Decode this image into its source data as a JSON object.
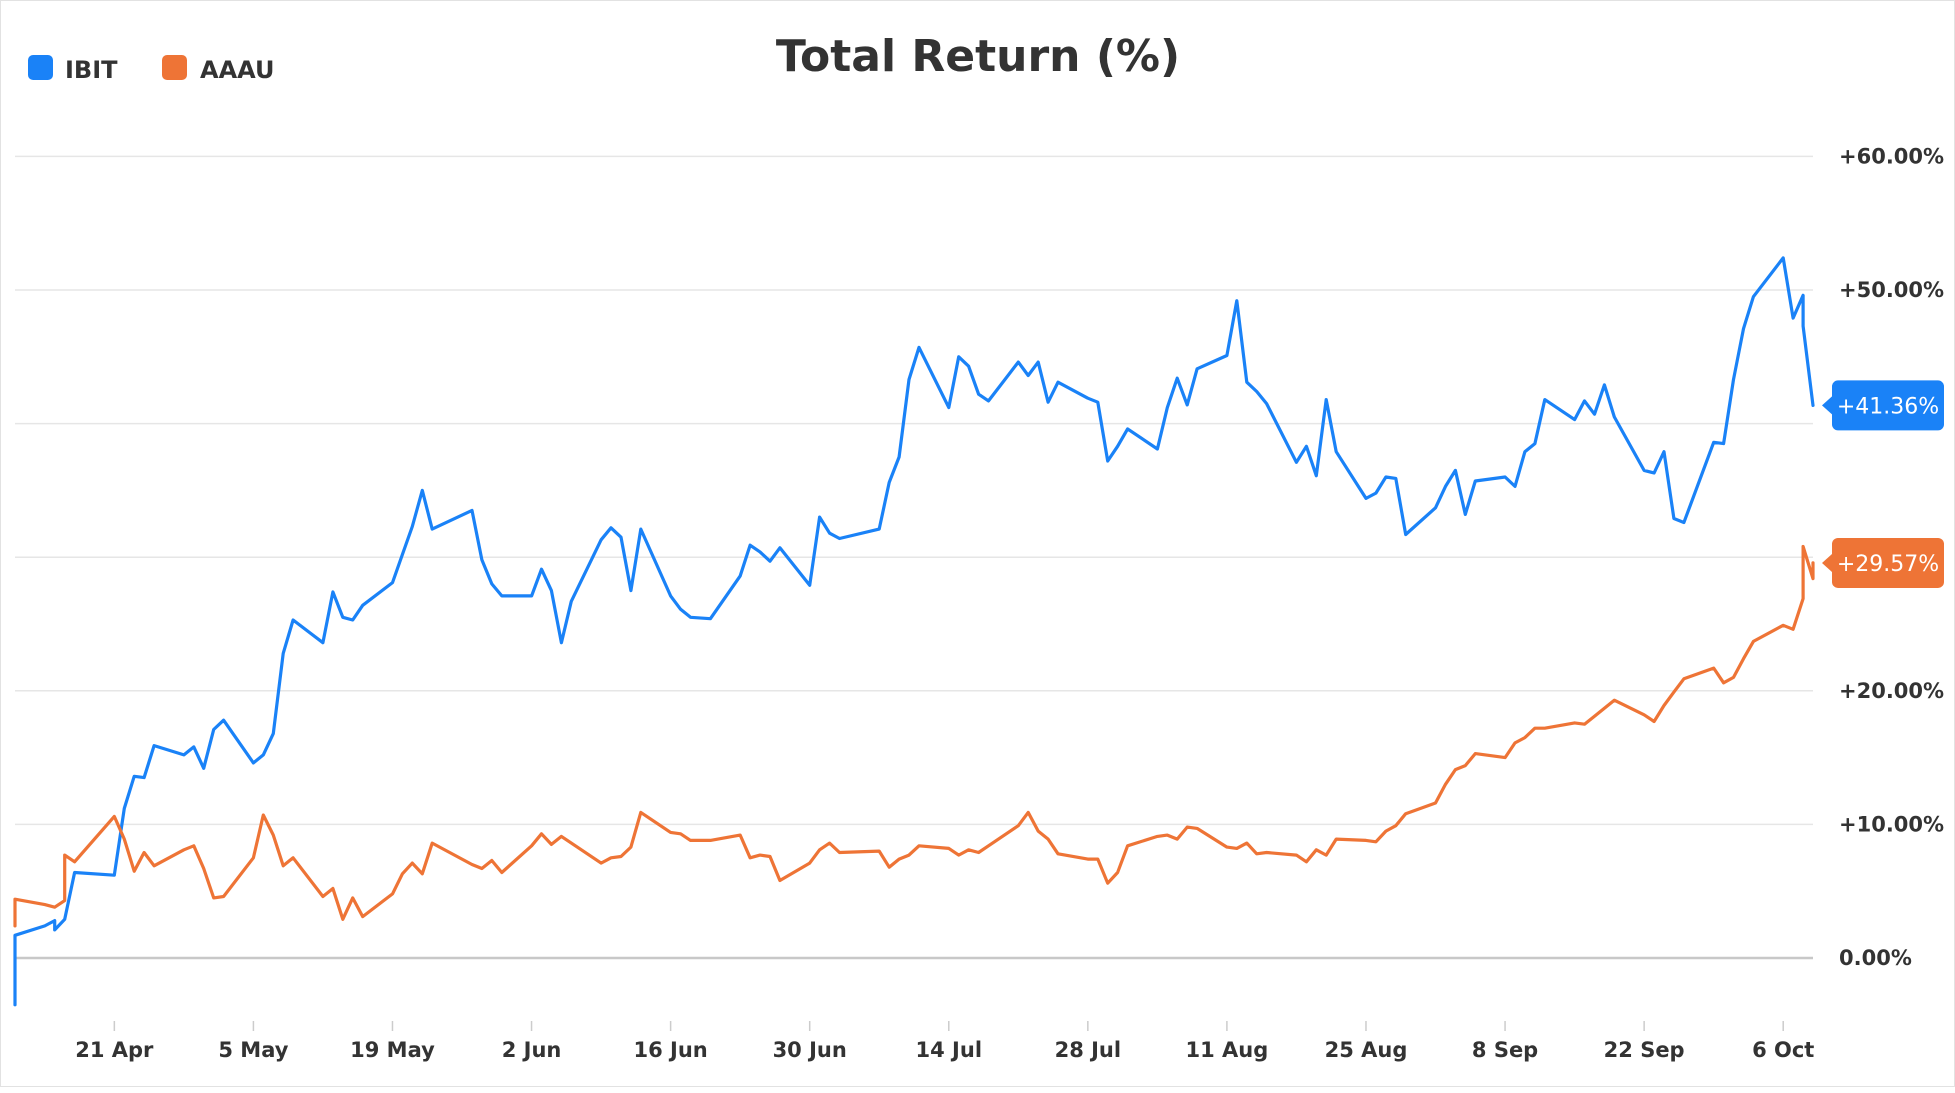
{
  "colors": {
    "ibit": "#1a82f7",
    "aaau": "#ee7436"
  },
  "chart_data": {
    "type": "line",
    "title": "Total Return (%)",
    "xlabel": "",
    "ylabel": "",
    "ylim": [
      -5,
      64
    ],
    "grid": true,
    "legend_position": "top-left",
    "y_ticks": [
      0,
      10,
      20,
      30,
      40,
      50,
      60
    ],
    "y_tick_labels": [
      "0.00%",
      "+10.00%",
      "+20.00%",
      "",
      "",
      "+50.00%",
      "+60.00%"
    ],
    "x_ticks": [
      "21 Apr",
      "5 May",
      "19 May",
      "2 Jun",
      "16 Jun",
      "30 Jun",
      "14 Jul",
      "28 Jul",
      "11 Aug",
      "25 Aug",
      "8 Sep",
      "22 Sep",
      "6 Oct"
    ],
    "x_range": [
      "2025-04-11",
      "2025-10-09"
    ],
    "series": [
      {
        "name": "IBIT",
        "color": "#1a82f7",
        "end_label": "+41.36%",
        "points": [
          [
            "2025-04-11",
            -3.5
          ],
          [
            "2025-04-11",
            1.7
          ],
          [
            "2025-04-14",
            2.4
          ],
          [
            "2025-04-15",
            2.8
          ],
          [
            "2025-04-15",
            2.1
          ],
          [
            "2025-04-16",
            2.9
          ],
          [
            "2025-04-17",
            6.4
          ],
          [
            "2025-04-21",
            6.2
          ],
          [
            "2025-04-22",
            11.2
          ],
          [
            "2025-04-23",
            13.6
          ],
          [
            "2025-04-24",
            13.5
          ],
          [
            "2025-04-25",
            15.9
          ],
          [
            "2025-04-28",
            15.2
          ],
          [
            "2025-04-29",
            15.8
          ],
          [
            "2025-04-30",
            14.2
          ],
          [
            "2025-05-01",
            17.1
          ],
          [
            "2025-05-02",
            17.8
          ],
          [
            "2025-05-05",
            14.6
          ],
          [
            "2025-05-06",
            15.2
          ],
          [
            "2025-05-07",
            16.8
          ],
          [
            "2025-05-08",
            22.8
          ],
          [
            "2025-05-09",
            25.3
          ],
          [
            "2025-05-12",
            23.6
          ],
          [
            "2025-05-13",
            27.4
          ],
          [
            "2025-05-14",
            25.5
          ],
          [
            "2025-05-15",
            25.3
          ],
          [
            "2025-05-16",
            26.4
          ],
          [
            "2025-05-19",
            28.1
          ],
          [
            "2025-05-20",
            30.2
          ],
          [
            "2025-05-21",
            32.3
          ],
          [
            "2025-05-22",
            35.0
          ],
          [
            "2025-05-23",
            32.1
          ],
          [
            "2025-05-27",
            33.5
          ],
          [
            "2025-05-28",
            29.8
          ],
          [
            "2025-05-29",
            28.0
          ],
          [
            "2025-05-30",
            27.1
          ],
          [
            "2025-06-02",
            27.1
          ],
          [
            "2025-06-03",
            29.1
          ],
          [
            "2025-06-04",
            27.5
          ],
          [
            "2025-06-05",
            23.6
          ],
          [
            "2025-06-06",
            26.7
          ],
          [
            "2025-06-09",
            31.3
          ],
          [
            "2025-06-10",
            32.2
          ],
          [
            "2025-06-11",
            31.5
          ],
          [
            "2025-06-12",
            27.5
          ],
          [
            "2025-06-13",
            32.1
          ],
          [
            "2025-06-16",
            27.1
          ],
          [
            "2025-06-17",
            26.1
          ],
          [
            "2025-06-18",
            25.5
          ],
          [
            "2025-06-20",
            25.4
          ],
          [
            "2025-06-23",
            28.6
          ],
          [
            "2025-06-24",
            30.9
          ],
          [
            "2025-06-25",
            30.4
          ],
          [
            "2025-06-26",
            29.7
          ],
          [
            "2025-06-27",
            30.7
          ],
          [
            "2025-06-30",
            27.9
          ],
          [
            "2025-07-01",
            33.0
          ],
          [
            "2025-07-02",
            31.8
          ],
          [
            "2025-07-03",
            31.4
          ],
          [
            "2025-07-07",
            32.1
          ],
          [
            "2025-07-08",
            35.6
          ],
          [
            "2025-07-09",
            37.5
          ],
          [
            "2025-07-10",
            43.3
          ],
          [
            "2025-07-11",
            45.7
          ],
          [
            "2025-07-14",
            41.2
          ],
          [
            "2025-07-15",
            45.0
          ],
          [
            "2025-07-16",
            44.3
          ],
          [
            "2025-07-17",
            42.2
          ],
          [
            "2025-07-18",
            41.7
          ],
          [
            "2025-07-21",
            44.6
          ],
          [
            "2025-07-22",
            43.6
          ],
          [
            "2025-07-23",
            44.6
          ],
          [
            "2025-07-24",
            41.6
          ],
          [
            "2025-07-25",
            43.1
          ],
          [
            "2025-07-28",
            41.9
          ],
          [
            "2025-07-29",
            41.6
          ],
          [
            "2025-07-30",
            37.2
          ],
          [
            "2025-07-31",
            38.3
          ],
          [
            "2025-08-01",
            39.6
          ],
          [
            "2025-08-04",
            38.1
          ],
          [
            "2025-08-05",
            41.2
          ],
          [
            "2025-08-06",
            43.4
          ],
          [
            "2025-08-07",
            41.4
          ],
          [
            "2025-08-08",
            44.1
          ],
          [
            "2025-08-11",
            45.1
          ],
          [
            "2025-08-12",
            49.2
          ],
          [
            "2025-08-13",
            43.1
          ],
          [
            "2025-08-14",
            42.4
          ],
          [
            "2025-08-15",
            41.5
          ],
          [
            "2025-08-18",
            37.1
          ],
          [
            "2025-08-19",
            38.3
          ],
          [
            "2025-08-20",
            36.1
          ],
          [
            "2025-08-21",
            41.8
          ],
          [
            "2025-08-22",
            37.9
          ],
          [
            "2025-08-25",
            34.4
          ],
          [
            "2025-08-26",
            34.8
          ],
          [
            "2025-08-27",
            36.0
          ],
          [
            "2025-08-28",
            35.9
          ],
          [
            "2025-08-29",
            31.7
          ],
          [
            "2025-09-01",
            33.7
          ],
          [
            "2025-09-02",
            35.3
          ],
          [
            "2025-09-03",
            36.5
          ],
          [
            "2025-09-04",
            33.2
          ],
          [
            "2025-09-05",
            35.7
          ],
          [
            "2025-09-08",
            36.0
          ],
          [
            "2025-09-09",
            35.3
          ],
          [
            "2025-09-10",
            37.9
          ],
          [
            "2025-09-11",
            38.5
          ],
          [
            "2025-09-12",
            41.8
          ],
          [
            "2025-09-15",
            40.3
          ],
          [
            "2025-09-16",
            41.7
          ],
          [
            "2025-09-17",
            40.7
          ],
          [
            "2025-09-18",
            42.9
          ],
          [
            "2025-09-19",
            40.5
          ],
          [
            "2025-09-22",
            36.5
          ],
          [
            "2025-09-23",
            36.3
          ],
          [
            "2025-09-24",
            37.9
          ],
          [
            "2025-09-25",
            32.9
          ],
          [
            "2025-09-26",
            32.6
          ],
          [
            "2025-09-29",
            38.6
          ],
          [
            "2025-09-30",
            38.5
          ],
          [
            "2025-10-01",
            43.3
          ],
          [
            "2025-10-02",
            47.1
          ],
          [
            "2025-10-03",
            49.5
          ],
          [
            "2025-10-06",
            52.4
          ],
          [
            "2025-10-07",
            47.9
          ],
          [
            "2025-10-08",
            49.6
          ],
          [
            "2025-10-08",
            47.3
          ],
          [
            "2025-10-09",
            41.36
          ]
        ]
      },
      {
        "name": "AAAU",
        "color": "#ee7436",
        "end_label": "+29.57%",
        "points": [
          [
            "2025-04-11",
            2.4
          ],
          [
            "2025-04-11",
            4.4
          ],
          [
            "2025-04-14",
            4.0
          ],
          [
            "2025-04-15",
            3.8
          ],
          [
            "2025-04-16",
            4.3
          ],
          [
            "2025-04-16",
            7.7
          ],
          [
            "2025-04-17",
            7.2
          ],
          [
            "2025-04-21",
            10.6
          ],
          [
            "2025-04-22",
            8.9
          ],
          [
            "2025-04-23",
            6.5
          ],
          [
            "2025-04-24",
            7.9
          ],
          [
            "2025-04-25",
            6.9
          ],
          [
            "2025-04-28",
            8.1
          ],
          [
            "2025-04-29",
            8.4
          ],
          [
            "2025-04-30",
            6.7
          ],
          [
            "2025-05-01",
            4.5
          ],
          [
            "2025-05-02",
            4.6
          ],
          [
            "2025-05-05",
            7.5
          ],
          [
            "2025-05-06",
            10.7
          ],
          [
            "2025-05-07",
            9.2
          ],
          [
            "2025-05-08",
            6.9
          ],
          [
            "2025-05-09",
            7.5
          ],
          [
            "2025-05-12",
            4.6
          ],
          [
            "2025-05-13",
            5.2
          ],
          [
            "2025-05-14",
            2.9
          ],
          [
            "2025-05-15",
            4.5
          ],
          [
            "2025-05-16",
            3.1
          ],
          [
            "2025-05-19",
            4.8
          ],
          [
            "2025-05-20",
            6.3
          ],
          [
            "2025-05-21",
            7.1
          ],
          [
            "2025-05-22",
            6.3
          ],
          [
            "2025-05-23",
            8.6
          ],
          [
            "2025-05-27",
            7.0
          ],
          [
            "2025-05-28",
            6.7
          ],
          [
            "2025-05-29",
            7.3
          ],
          [
            "2025-05-30",
            6.4
          ],
          [
            "2025-06-02",
            8.4
          ],
          [
            "2025-06-03",
            9.3
          ],
          [
            "2025-06-04",
            8.5
          ],
          [
            "2025-06-05",
            9.1
          ],
          [
            "2025-06-06",
            8.6
          ],
          [
            "2025-06-09",
            7.1
          ],
          [
            "2025-06-10",
            7.5
          ],
          [
            "2025-06-11",
            7.6
          ],
          [
            "2025-06-12",
            8.3
          ],
          [
            "2025-06-13",
            10.9
          ],
          [
            "2025-06-16",
            9.4
          ],
          [
            "2025-06-17",
            9.3
          ],
          [
            "2025-06-18",
            8.8
          ],
          [
            "2025-06-20",
            8.8
          ],
          [
            "2025-06-23",
            9.2
          ],
          [
            "2025-06-24",
            7.5
          ],
          [
            "2025-06-25",
            7.7
          ],
          [
            "2025-06-26",
            7.6
          ],
          [
            "2025-06-27",
            5.8
          ],
          [
            "2025-06-30",
            7.1
          ],
          [
            "2025-07-01",
            8.1
          ],
          [
            "2025-07-02",
            8.6
          ],
          [
            "2025-07-03",
            7.9
          ],
          [
            "2025-07-07",
            8.0
          ],
          [
            "2025-07-08",
            6.8
          ],
          [
            "2025-07-09",
            7.4
          ],
          [
            "2025-07-10",
            7.7
          ],
          [
            "2025-07-11",
            8.4
          ],
          [
            "2025-07-14",
            8.2
          ],
          [
            "2025-07-15",
            7.7
          ],
          [
            "2025-07-16",
            8.1
          ],
          [
            "2025-07-17",
            7.9
          ],
          [
            "2025-07-18",
            8.4
          ],
          [
            "2025-07-21",
            9.9
          ],
          [
            "2025-07-22",
            10.9
          ],
          [
            "2025-07-23",
            9.5
          ],
          [
            "2025-07-24",
            8.9
          ],
          [
            "2025-07-25",
            7.8
          ],
          [
            "2025-07-28",
            7.4
          ],
          [
            "2025-07-29",
            7.4
          ],
          [
            "2025-07-30",
            5.6
          ],
          [
            "2025-07-31",
            6.4
          ],
          [
            "2025-08-01",
            8.4
          ],
          [
            "2025-08-04",
            9.1
          ],
          [
            "2025-08-05",
            9.2
          ],
          [
            "2025-08-06",
            8.9
          ],
          [
            "2025-08-07",
            9.8
          ],
          [
            "2025-08-08",
            9.7
          ],
          [
            "2025-08-11",
            8.3
          ],
          [
            "2025-08-12",
            8.2
          ],
          [
            "2025-08-13",
            8.6
          ],
          [
            "2025-08-14",
            7.8
          ],
          [
            "2025-08-15",
            7.9
          ],
          [
            "2025-08-18",
            7.7
          ],
          [
            "2025-08-19",
            7.2
          ],
          [
            "2025-08-20",
            8.1
          ],
          [
            "2025-08-21",
            7.7
          ],
          [
            "2025-08-22",
            8.9
          ],
          [
            "2025-08-25",
            8.8
          ],
          [
            "2025-08-26",
            8.7
          ],
          [
            "2025-08-27",
            9.5
          ],
          [
            "2025-08-28",
            9.9
          ],
          [
            "2025-08-29",
            10.8
          ],
          [
            "2025-09-01",
            11.6
          ],
          [
            "2025-09-02",
            13.0
          ],
          [
            "2025-09-03",
            14.1
          ],
          [
            "2025-09-04",
            14.4
          ],
          [
            "2025-09-05",
            15.3
          ],
          [
            "2025-09-08",
            15.0
          ],
          [
            "2025-09-09",
            16.1
          ],
          [
            "2025-09-10",
            16.5
          ],
          [
            "2025-09-11",
            17.2
          ],
          [
            "2025-09-12",
            17.2
          ],
          [
            "2025-09-15",
            17.6
          ],
          [
            "2025-09-16",
            17.5
          ],
          [
            "2025-09-17",
            18.1
          ],
          [
            "2025-09-18",
            18.7
          ],
          [
            "2025-09-19",
            19.3
          ],
          [
            "2025-09-22",
            18.2
          ],
          [
            "2025-09-23",
            17.7
          ],
          [
            "2025-09-24",
            18.9
          ],
          [
            "2025-09-25",
            19.9
          ],
          [
            "2025-09-26",
            20.9
          ],
          [
            "2025-09-29",
            21.7
          ],
          [
            "2025-09-30",
            20.6
          ],
          [
            "2025-10-01",
            21.0
          ],
          [
            "2025-10-02",
            22.4
          ],
          [
            "2025-10-03",
            23.7
          ],
          [
            "2025-10-06",
            24.9
          ],
          [
            "2025-10-07",
            24.6
          ],
          [
            "2025-10-08",
            26.9
          ],
          [
            "2025-10-08",
            30.8
          ],
          [
            "2025-10-09",
            28.4
          ],
          [
            "2025-10-09",
            29.57
          ]
        ]
      }
    ]
  }
}
